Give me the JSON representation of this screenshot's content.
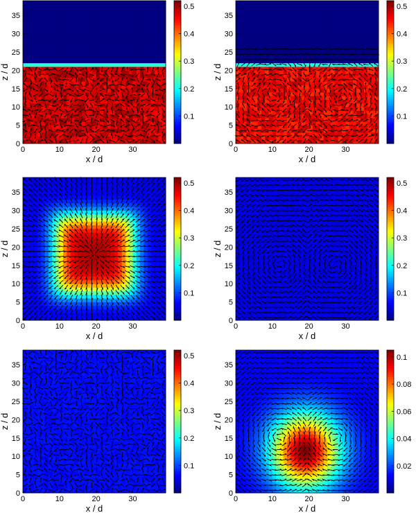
{
  "chart_data": [
    {
      "type": "heatmap",
      "panel": "top-left",
      "xlabel": "x / d",
      "ylabel": "z / d",
      "xlim": [
        0,
        39
      ],
      "ylim": [
        0,
        39
      ],
      "xticks": [
        0,
        10,
        20,
        30
      ],
      "yticks": [
        0,
        5,
        10,
        15,
        20,
        25,
        30,
        35
      ],
      "colorbar": {
        "min": 0,
        "max": 0.52,
        "ticks": [
          0.1,
          0.2,
          0.3,
          0.4,
          0.5
        ]
      },
      "field": {
        "pattern": "slab",
        "surface_z": 21.5,
        "value_inside": 0.48
      },
      "arrows": "random"
    },
    {
      "type": "heatmap",
      "panel": "top-right",
      "xlabel": "x / d",
      "ylabel": "z / d",
      "xlim": [
        0,
        39
      ],
      "ylim": [
        0,
        39
      ],
      "xticks": [
        0,
        10,
        20,
        30
      ],
      "yticks": [
        0,
        5,
        10,
        15,
        20,
        25,
        30,
        35
      ],
      "colorbar": {
        "min": 0,
        "max": 0.52,
        "ticks": [
          0.1,
          0.2,
          0.3,
          0.4,
          0.5
        ]
      },
      "field": {
        "pattern": "slab",
        "surface_z": 21.5,
        "value_inside": 0.46
      },
      "arrows": "slab-rolls"
    },
    {
      "type": "heatmap",
      "panel": "middle-left",
      "xlabel": "x / d",
      "ylabel": "z / d",
      "xlim": [
        0,
        39
      ],
      "ylim": [
        0,
        39
      ],
      "xticks": [
        0,
        10,
        20,
        30
      ],
      "yticks": [
        0,
        5,
        10,
        15,
        20,
        25,
        30,
        35
      ],
      "colorbar": {
        "min": 0,
        "max": 0.52,
        "ticks": [
          0.1,
          0.2,
          0.3,
          0.4,
          0.5
        ]
      },
      "field": {
        "pattern": "square-core",
        "center": [
          19.5,
          18
        ],
        "half_width": 10,
        "peak": 0.5,
        "edge": 0.05
      },
      "arrows": "radial"
    },
    {
      "type": "heatmap",
      "panel": "middle-right",
      "xlabel": "x / d",
      "ylabel": "z / d",
      "xlim": [
        0,
        39
      ],
      "ylim": [
        0,
        39
      ],
      "xticks": [
        0,
        10,
        20,
        30
      ],
      "yticks": [
        0,
        5,
        10,
        15,
        20,
        25,
        30,
        35
      ],
      "colorbar": {
        "min": 0,
        "max": 0.52,
        "ticks": [
          0.1,
          0.2,
          0.3,
          0.4,
          0.5
        ]
      },
      "field": {
        "pattern": "uniform",
        "value": 0.05
      },
      "arrows": "vortex-pair"
    },
    {
      "type": "heatmap",
      "panel": "bottom-left",
      "xlabel": "x / d",
      "ylabel": "z / d",
      "xlim": [
        0,
        39
      ],
      "ylim": [
        0,
        39
      ],
      "xticks": [
        0,
        10,
        20,
        30
      ],
      "yticks": [
        0,
        5,
        10,
        15,
        20,
        25,
        30,
        35
      ],
      "colorbar": {
        "min": 0,
        "max": 0.52,
        "ticks": [
          0.1,
          0.2,
          0.3,
          0.4,
          0.5
        ]
      },
      "field": {
        "pattern": "uniform",
        "value": 0.07
      },
      "arrows": "random"
    },
    {
      "type": "heatmap",
      "panel": "bottom-right",
      "xlabel": "x / d",
      "ylabel": "z / d",
      "xlim": [
        0,
        39
      ],
      "ylim": [
        0,
        39
      ],
      "xticks": [
        0,
        10,
        20,
        30
      ],
      "yticks": [
        0,
        5,
        10,
        15,
        20,
        25,
        30,
        35
      ],
      "colorbar": {
        "min": 0,
        "max": 0.105,
        "ticks": [
          0.02,
          0.04,
          0.06,
          0.08,
          0.1
        ]
      },
      "field": {
        "pattern": "gaussian",
        "center": [
          19,
          11.5
        ],
        "sigma": [
          6.5,
          7
        ],
        "peak": 0.105,
        "base": 0.012
      },
      "arrows": "vortex-pair"
    }
  ],
  "colormap": "jet"
}
